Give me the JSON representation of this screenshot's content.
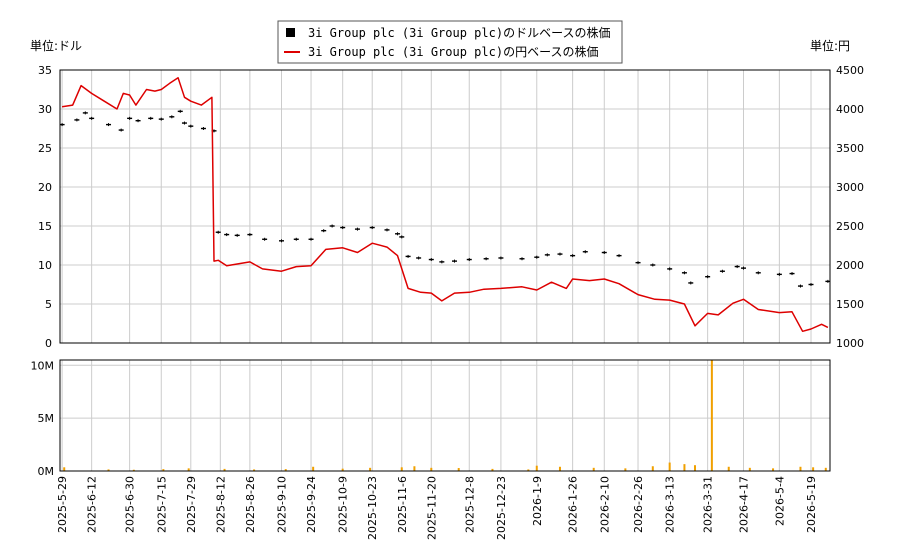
{
  "units": {
    "left": "単位:ドル",
    "right": "単位:円"
  },
  "legend": {
    "usd": "3i Group plc (3i Group plc)のドルベースの株価",
    "jpy": "3i Group plc (3i Group plc)の円ベースの株価"
  },
  "colors": {
    "usd": "#000000",
    "jpy": "#dd0000",
    "volume": "#f0a000",
    "grid": "#cccccc"
  },
  "chart_data": [
    {
      "type": "line",
      "x_ticks": [
        "2025-5-29",
        "2025-6-12",
        "2025-6-30",
        "2025-7-15",
        "2025-7-29",
        "2025-8-12",
        "2025-8-26",
        "2025-9-10",
        "2025-9-24",
        "2025-10-9",
        "2025-10-23",
        "2025-11-6",
        "2025-11-20",
        "2025-12-8",
        "2025-12-23",
        "2026-1-9",
        "2026-1-26",
        "2026-2-10",
        "2026-2-26",
        "2026-3-13",
        "2026-3-31",
        "2026-4-17",
        "2026-5-4",
        "2026-5-19"
      ],
      "y_left": {
        "ylim": [
          0,
          35
        ],
        "ticks": [
          "0",
          "5",
          "10",
          "15",
          "20",
          "25",
          "30",
          "35"
        ]
      },
      "y_right": {
        "ylim": [
          1000,
          4500
        ],
        "ticks": [
          "1000",
          "1500",
          "2000",
          "2500",
          "3000",
          "3500",
          "4000",
          "4500"
        ]
      },
      "grid": true,
      "legend_position": "top-center",
      "series": [
        {
          "name": "3i Group plc (3i Group plc)のドルベースの株価",
          "axis": "left",
          "style": "ohlc",
          "points": [
            [
              "2025-5-29",
              28.0
            ],
            [
              "2025-6-5",
              28.6
            ],
            [
              "2025-6-9",
              29.5
            ],
            [
              "2025-6-12",
              28.8
            ],
            [
              "2025-6-20",
              28.0
            ],
            [
              "2025-6-26",
              27.3
            ],
            [
              "2025-6-30",
              28.8
            ],
            [
              "2025-7-4",
              28.5
            ],
            [
              "2025-7-10",
              28.8
            ],
            [
              "2025-7-15",
              28.7
            ],
            [
              "2025-7-20",
              29.0
            ],
            [
              "2025-7-24",
              29.7
            ],
            [
              "2025-7-26",
              28.2
            ],
            [
              "2025-7-29",
              27.8
            ],
            [
              "2025-8-4",
              27.5
            ],
            [
              "2025-8-9",
              27.2
            ],
            [
              "2025-8-11",
              14.2
            ],
            [
              "2025-8-15",
              13.9
            ],
            [
              "2025-8-20",
              13.8
            ],
            [
              "2025-8-26",
              13.9
            ],
            [
              "2025-9-2",
              13.3
            ],
            [
              "2025-9-10",
              13.1
            ],
            [
              "2025-9-17",
              13.3
            ],
            [
              "2025-9-24",
              13.3
            ],
            [
              "2025-9-30",
              14.4
            ],
            [
              "2025-10-4",
              15.0
            ],
            [
              "2025-10-9",
              14.8
            ],
            [
              "2025-10-16",
              14.6
            ],
            [
              "2025-10-23",
              14.8
            ],
            [
              "2025-10-30",
              14.5
            ],
            [
              "2025-11-4",
              14.0
            ],
            [
              "2025-11-6",
              13.6
            ],
            [
              "2025-11-9",
              11.1
            ],
            [
              "2025-11-14",
              10.9
            ],
            [
              "2025-11-20",
              10.7
            ],
            [
              "2025-11-25",
              10.4
            ],
            [
              "2025-12-1",
              10.5
            ],
            [
              "2025-12-8",
              10.7
            ],
            [
              "2025-12-16",
              10.8
            ],
            [
              "2025-12-23",
              10.9
            ],
            [
              "2026-1-2",
              10.8
            ],
            [
              "2026-1-9",
              11.0
            ],
            [
              "2026-1-14",
              11.3
            ],
            [
              "2026-1-20",
              11.4
            ],
            [
              "2026-1-26",
              11.2
            ],
            [
              "2026-2-1",
              11.7
            ],
            [
              "2026-2-10",
              11.6
            ],
            [
              "2026-2-17",
              11.2
            ],
            [
              "2026-2-26",
              10.3
            ],
            [
              "2026-3-5",
              10.0
            ],
            [
              "2026-3-13",
              9.5
            ],
            [
              "2026-3-20",
              9.0
            ],
            [
              "2026-3-23",
              7.7
            ],
            [
              "2026-3-31",
              8.5
            ],
            [
              "2026-4-7",
              9.2
            ],
            [
              "2026-4-14",
              9.8
            ],
            [
              "2026-4-17",
              9.6
            ],
            [
              "2026-4-24",
              9.0
            ],
            [
              "2026-5-4",
              8.8
            ],
            [
              "2026-5-10",
              8.9
            ],
            [
              "2026-5-14",
              7.3
            ],
            [
              "2026-5-19",
              7.5
            ],
            [
              "2026-5-27",
              7.9
            ]
          ]
        },
        {
          "name": "3i Group plc (3i Group plc)の円ベースの株価",
          "axis": "right",
          "style": "line",
          "points": [
            [
              "2025-5-29",
              4030
            ],
            [
              "2025-6-3",
              4050
            ],
            [
              "2025-6-7",
              4300
            ],
            [
              "2025-6-12",
              4200
            ],
            [
              "2025-6-18",
              4100
            ],
            [
              "2025-6-24",
              4000
            ],
            [
              "2025-6-27",
              4200
            ],
            [
              "2025-6-30",
              4180
            ],
            [
              "2025-7-3",
              4050
            ],
            [
              "2025-7-8",
              4250
            ],
            [
              "2025-7-12",
              4230
            ],
            [
              "2025-7-15",
              4250
            ],
            [
              "2025-7-19",
              4330
            ],
            [
              "2025-7-23",
              4400
            ],
            [
              "2025-7-26",
              4150
            ],
            [
              "2025-7-29",
              4100
            ],
            [
              "2025-8-3",
              4050
            ],
            [
              "2025-8-8",
              4150
            ],
            [
              "2025-8-9",
              2050
            ],
            [
              "2025-8-11",
              2060
            ],
            [
              "2025-8-15",
              1990
            ],
            [
              "2025-8-26",
              2040
            ],
            [
              "2025-9-1",
              1950
            ],
            [
              "2025-9-10",
              1920
            ],
            [
              "2025-9-17",
              1980
            ],
            [
              "2025-9-24",
              1990
            ],
            [
              "2025-10-1",
              2200
            ],
            [
              "2025-10-9",
              2220
            ],
            [
              "2025-10-16",
              2160
            ],
            [
              "2025-10-23",
              2280
            ],
            [
              "2025-10-30",
              2230
            ],
            [
              "2025-11-4",
              2120
            ],
            [
              "2025-11-6",
              1950
            ],
            [
              "2025-11-9",
              1700
            ],
            [
              "2025-11-15",
              1650
            ],
            [
              "2025-11-20",
              1640
            ],
            [
              "2025-11-25",
              1540
            ],
            [
              "2025-12-1",
              1640
            ],
            [
              "2025-12-8",
              1650
            ],
            [
              "2025-12-15",
              1690
            ],
            [
              "2025-12-23",
              1700
            ],
            [
              "2026-1-2",
              1720
            ],
            [
              "2026-1-9",
              1680
            ],
            [
              "2026-1-16",
              1780
            ],
            [
              "2026-1-23",
              1700
            ],
            [
              "2026-1-26",
              1820
            ],
            [
              "2026-2-3",
              1800
            ],
            [
              "2026-2-10",
              1820
            ],
            [
              "2026-2-17",
              1760
            ],
            [
              "2026-2-26",
              1620
            ],
            [
              "2026-3-6",
              1560
            ],
            [
              "2026-3-13",
              1550
            ],
            [
              "2026-3-20",
              1500
            ],
            [
              "2026-3-25",
              1220
            ],
            [
              "2026-3-31",
              1380
            ],
            [
              "2026-4-5",
              1360
            ],
            [
              "2026-4-12",
              1510
            ],
            [
              "2026-4-17",
              1560
            ],
            [
              "2026-4-24",
              1430
            ],
            [
              "2026-5-4",
              1390
            ],
            [
              "2026-5-10",
              1400
            ],
            [
              "2026-5-15",
              1150
            ],
            [
              "2026-5-19",
              1180
            ],
            [
              "2026-5-24",
              1240
            ],
            [
              "2026-5-27",
              1200
            ]
          ]
        }
      ]
    },
    {
      "type": "bar",
      "ylim": [
        0,
        10500000
      ],
      "y_ticks": [
        {
          "label": "0M",
          "value": 0
        },
        {
          "label": "5M",
          "value": 5000000
        },
        {
          "label": "10M",
          "value": 10000000
        }
      ],
      "grid": true,
      "series": [
        {
          "name": "volume",
          "points": [
            [
              "2025-5-30",
              350000
            ],
            [
              "2025-6-20",
              150000
            ],
            [
              "2025-7-2",
              120000
            ],
            [
              "2025-7-16",
              180000
            ],
            [
              "2025-7-28",
              250000
            ],
            [
              "2025-8-14",
              200000
            ],
            [
              "2025-8-28",
              150000
            ],
            [
              "2025-9-12",
              180000
            ],
            [
              "2025-9-25",
              400000
            ],
            [
              "2025-10-9",
              220000
            ],
            [
              "2025-10-22",
              300000
            ],
            [
              "2025-11-6",
              350000
            ],
            [
              "2025-11-12",
              450000
            ],
            [
              "2025-11-20",
              300000
            ],
            [
              "2025-12-3",
              280000
            ],
            [
              "2025-12-19",
              200000
            ],
            [
              "2026-1-5",
              150000
            ],
            [
              "2026-1-9",
              500000
            ],
            [
              "2026-1-20",
              400000
            ],
            [
              "2026-2-5",
              300000
            ],
            [
              "2026-2-20",
              250000
            ],
            [
              "2026-3-5",
              450000
            ],
            [
              "2026-3-13",
              800000
            ],
            [
              "2026-3-20",
              650000
            ],
            [
              "2026-3-25",
              550000
            ],
            [
              "2026-4-2",
              10500000
            ],
            [
              "2026-4-10",
              400000
            ],
            [
              "2026-4-20",
              300000
            ],
            [
              "2026-5-1",
              250000
            ],
            [
              "2026-5-14",
              400000
            ],
            [
              "2026-5-20",
              350000
            ],
            [
              "2026-5-26",
              300000
            ]
          ]
        }
      ]
    }
  ]
}
